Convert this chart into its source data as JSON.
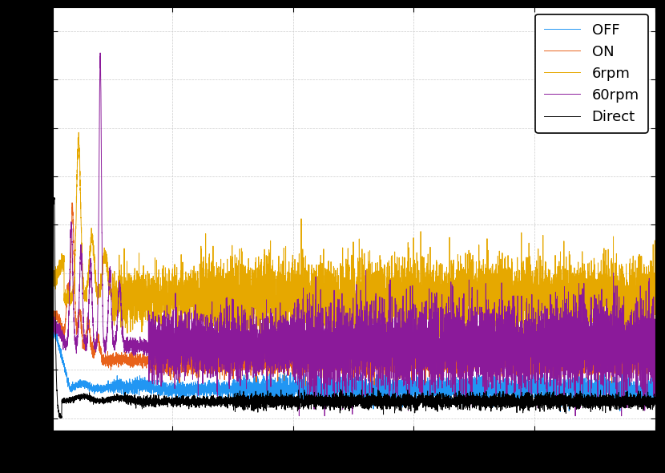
{
  "title": "",
  "xlabel": "",
  "ylabel": "",
  "legend_labels": [
    "OFF",
    "ON",
    "6rpm",
    "60rpm",
    "Direct"
  ],
  "colors": [
    "#2196f3",
    "#e8621a",
    "#e6a800",
    "#8b1a9a",
    "#000000"
  ],
  "background_color": "#ffffff",
  "outer_background": "#000000",
  "figsize": [
    8.3,
    5.9
  ],
  "dpi": 100
}
